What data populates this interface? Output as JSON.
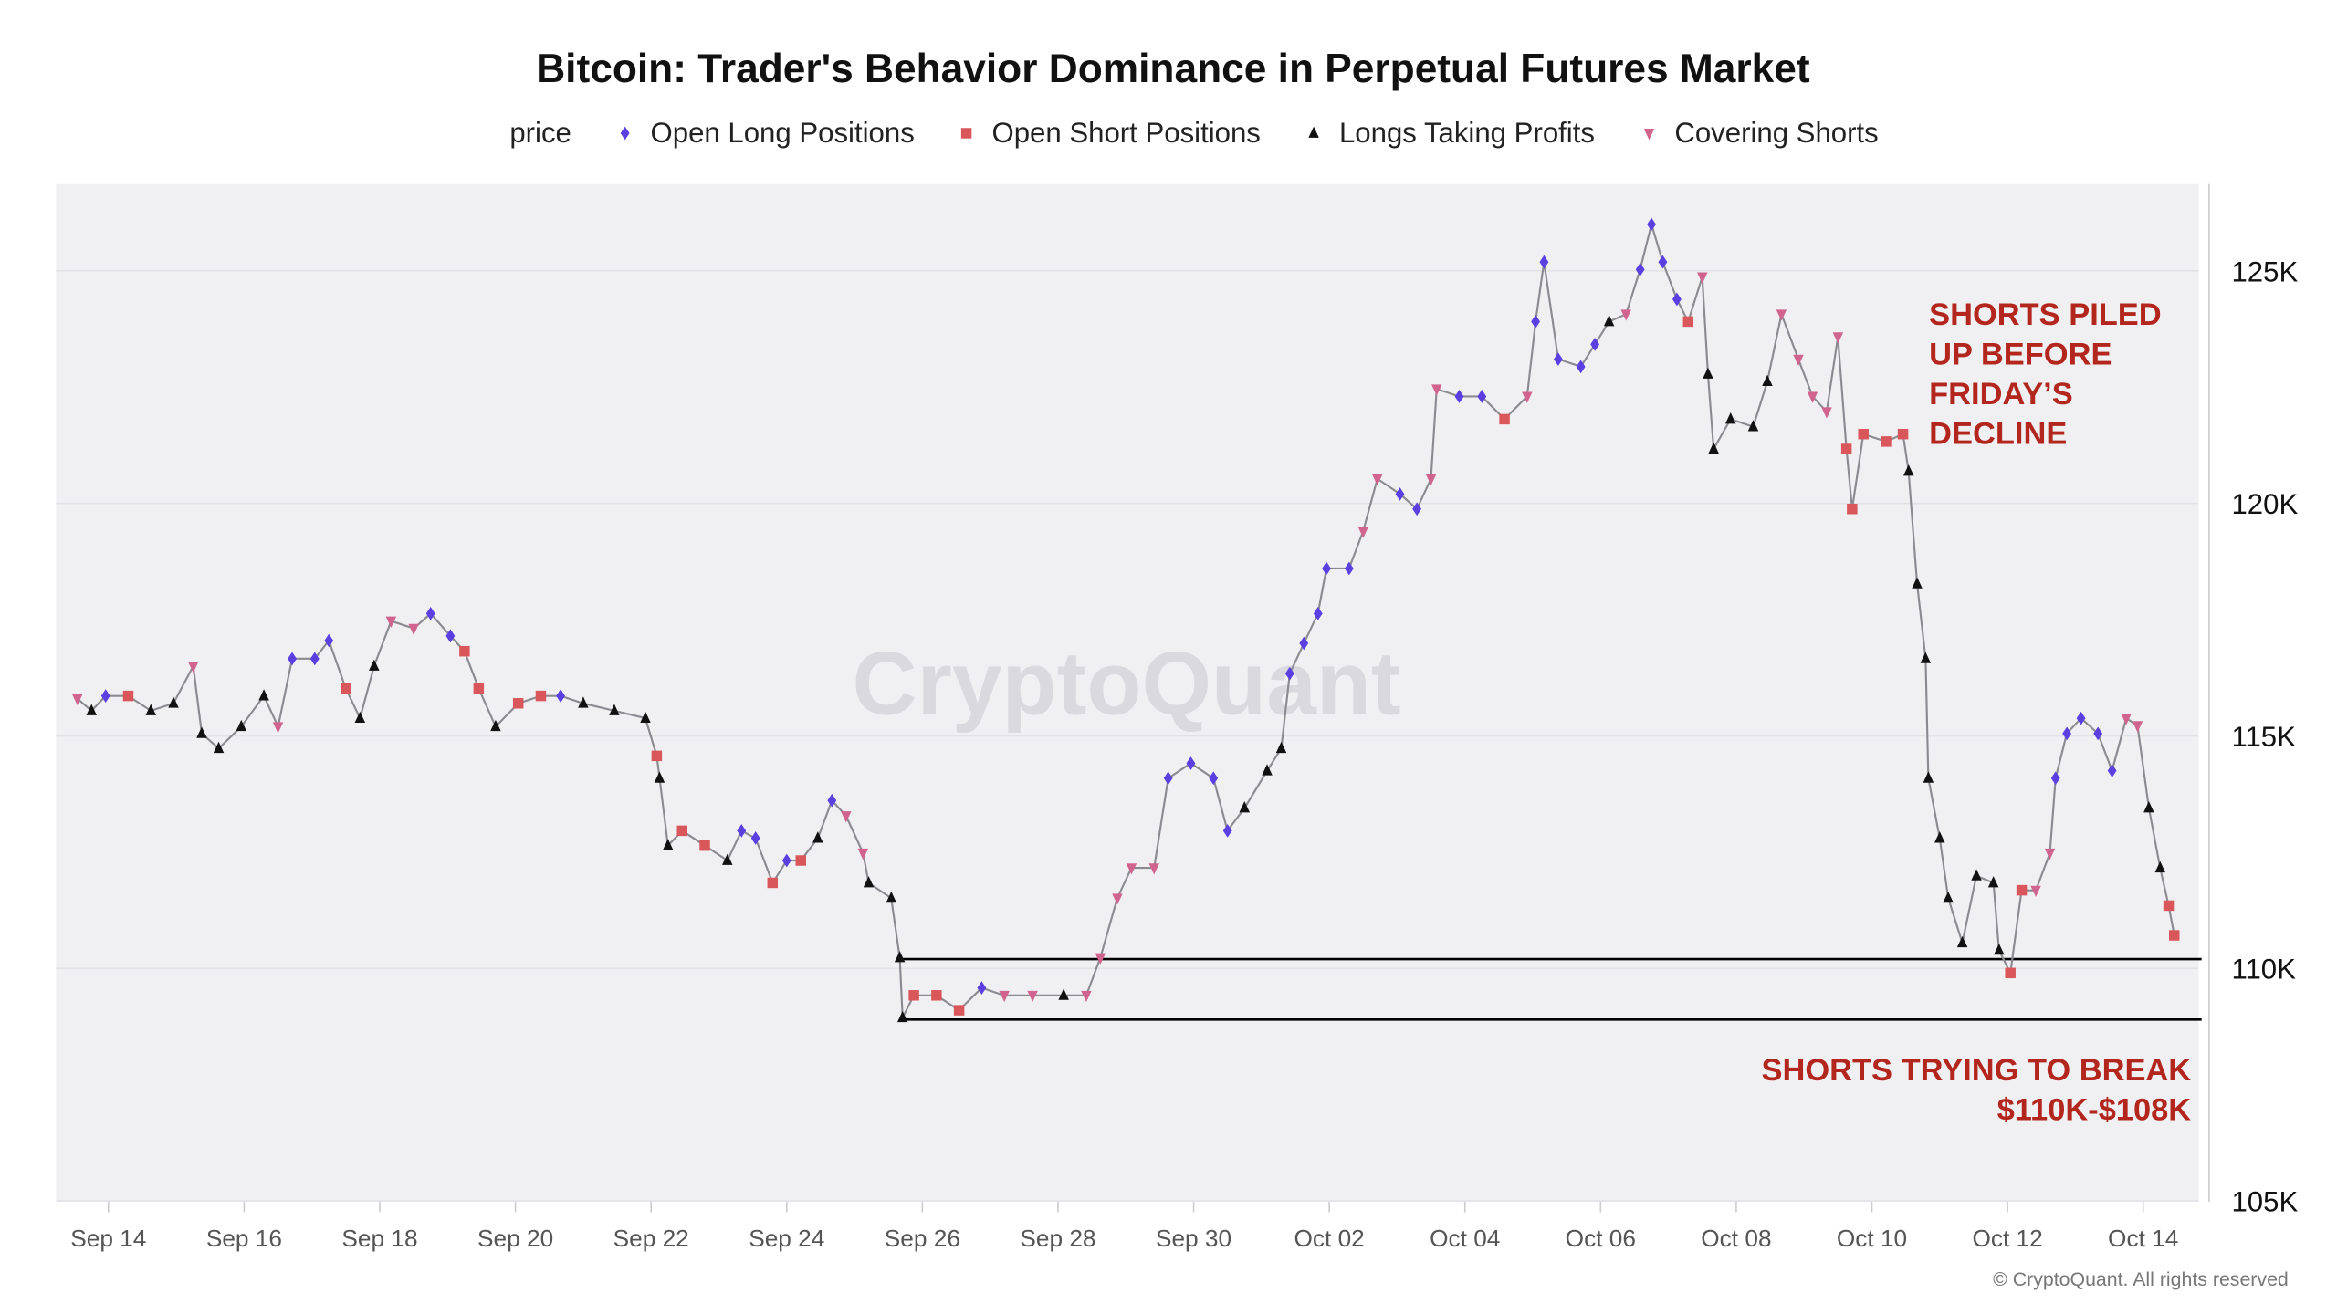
{
  "chart_data": {
    "type": "line",
    "title": "Bitcoin: Trader's Behavior Dominance in Perpetual Futures Market",
    "legend": [
      {
        "key": "price",
        "label": "price",
        "symbol": "line",
        "color": "#9a9aa0"
      },
      {
        "key": "L",
        "label": "Open Long Positions",
        "symbol": "diamond",
        "color": "#5b3fe0"
      },
      {
        "key": "S",
        "label": "Open Short Positions",
        "symbol": "square",
        "color": "#d9575a"
      },
      {
        "key": "P",
        "label": "Longs Taking Profits",
        "symbol": "triangle-up",
        "color": "#111111"
      },
      {
        "key": "C",
        "label": "Covering Shorts",
        "symbol": "triangle-down",
        "color": "#d0648f"
      }
    ],
    "legend_position": "top",
    "x_ticks": [
      "Sep 14",
      "Sep 16",
      "Sep 18",
      "Sep 20",
      "Sep 22",
      "Sep 24",
      "Sep 26",
      "Sep 28",
      "Sep 30",
      "Oct 02",
      "Oct 04",
      "Oct 06",
      "Oct 08",
      "Oct 10",
      "Oct 12",
      "Oct 14"
    ],
    "y_ticks": [
      "125K",
      "120K",
      "115K",
      "110K",
      "105K"
    ],
    "y_tick_values": [
      125,
      120,
      115,
      110,
      105
    ],
    "ylim": [
      105,
      127.8
    ],
    "y_unit": "K USD",
    "grid": "horizontal",
    "series_format": [
      "date hour",
      "price (K)",
      "behavior"
    ],
    "series": [
      [
        "09-13 13",
        115.8,
        "C"
      ],
      [
        "09-13 18",
        115.54,
        "P"
      ],
      [
        "09-13 23",
        115.86,
        "L"
      ],
      [
        "09-14 07",
        115.86,
        "S"
      ],
      [
        "09-14 15",
        115.54,
        "P"
      ],
      [
        "09-14 23",
        115.7,
        "P"
      ],
      [
        "09-15 06",
        116.5,
        "C"
      ],
      [
        "09-15 09",
        115.05,
        "P"
      ],
      [
        "09-15 15",
        114.73,
        "P"
      ],
      [
        "09-15 23",
        115.2,
        "P"
      ],
      [
        "09-16 07",
        115.86,
        "P"
      ],
      [
        "09-16 12",
        115.2,
        "C"
      ],
      [
        "09-16 17",
        116.66,
        "L"
      ],
      [
        "09-17 01",
        116.66,
        "L"
      ],
      [
        "09-17 06",
        117.05,
        "L"
      ],
      [
        "09-17 12",
        116.02,
        "S"
      ],
      [
        "09-17 17",
        115.38,
        "P"
      ],
      [
        "09-17 22",
        116.5,
        "P"
      ],
      [
        "09-18 04",
        117.47,
        "C"
      ],
      [
        "09-18 12",
        117.31,
        "C"
      ],
      [
        "09-18 18",
        117.63,
        "L"
      ],
      [
        "09-19 01",
        117.15,
        "L"
      ],
      [
        "09-19 06",
        116.82,
        "S"
      ],
      [
        "09-19 11",
        116.02,
        "S"
      ],
      [
        "09-19 17",
        115.2,
        "P"
      ],
      [
        "09-20 01",
        115.7,
        "S"
      ],
      [
        "09-20 09",
        115.86,
        "S"
      ],
      [
        "09-20 16",
        115.86,
        "L"
      ],
      [
        "09-21 00",
        115.7,
        "P"
      ],
      [
        "09-21 11",
        115.54,
        "P"
      ],
      [
        "09-21 22",
        115.38,
        "P"
      ],
      [
        "09-22 02",
        114.57,
        "S"
      ],
      [
        "09-22 03",
        114.09,
        "P"
      ],
      [
        "09-22 06",
        112.64,
        "P"
      ],
      [
        "09-22 11",
        112.96,
        "S"
      ],
      [
        "09-22 19",
        112.64,
        "S"
      ],
      [
        "09-23 03",
        112.32,
        "P"
      ],
      [
        "09-23 08",
        112.96,
        "L"
      ],
      [
        "09-23 13",
        112.8,
        "L"
      ],
      [
        "09-23 19",
        111.84,
        "S"
      ],
      [
        "09-24 00",
        112.32,
        "L"
      ],
      [
        "09-24 05",
        112.32,
        "S"
      ],
      [
        "09-24 11",
        112.8,
        "P"
      ],
      [
        "09-24 16",
        113.61,
        "L"
      ],
      [
        "09-24 21",
        113.28,
        "C"
      ],
      [
        "09-25 03",
        112.48,
        "C"
      ],
      [
        "09-25 05",
        111.84,
        "P"
      ],
      [
        "09-25 13",
        111.51,
        "P"
      ],
      [
        "09-25 16",
        110.23,
        "P"
      ],
      [
        "09-25 17",
        108.94,
        "P"
      ],
      [
        "09-25 21",
        109.42,
        "S"
      ],
      [
        "09-26 05",
        109.42,
        "S"
      ],
      [
        "09-26 13",
        109.1,
        "S"
      ],
      [
        "09-26 21",
        109.58,
        "L"
      ],
      [
        "09-27 05",
        109.42,
        "C"
      ],
      [
        "09-27 15",
        109.42,
        "C"
      ],
      [
        "09-28 02",
        109.42,
        "P"
      ],
      [
        "09-28 10",
        109.42,
        "C"
      ],
      [
        "09-28 15",
        110.23,
        "C"
      ],
      [
        "09-28 21",
        111.51,
        "C"
      ],
      [
        "09-29 02",
        112.16,
        "C"
      ],
      [
        "09-29 10",
        112.16,
        "C"
      ],
      [
        "09-29 15",
        114.09,
        "L"
      ],
      [
        "09-29 23",
        114.41,
        "L"
      ],
      [
        "09-30 07",
        114.09,
        "L"
      ],
      [
        "09-30 12",
        112.96,
        "L"
      ],
      [
        "09-30 18",
        113.45,
        "P"
      ],
      [
        "10-01 02",
        114.25,
        "P"
      ],
      [
        "10-01 07",
        114.73,
        "P"
      ],
      [
        "10-01 10",
        116.34,
        "L"
      ],
      [
        "10-01 15",
        116.99,
        "L"
      ],
      [
        "10-01 20",
        117.63,
        "L"
      ],
      [
        "10-01 23",
        118.6,
        "L"
      ],
      [
        "10-02 07",
        118.6,
        "L"
      ],
      [
        "10-02 12",
        119.4,
        "C"
      ],
      [
        "10-02 17",
        120.53,
        "C"
      ],
      [
        "10-03 01",
        120.2,
        "L"
      ],
      [
        "10-03 07",
        119.88,
        "L"
      ],
      [
        "10-03 12",
        120.53,
        "C"
      ],
      [
        "10-03 14",
        122.46,
        "C"
      ],
      [
        "10-03 22",
        122.3,
        "L"
      ],
      [
        "10-04 06",
        122.3,
        "L"
      ],
      [
        "10-04 14",
        121.81,
        "S"
      ],
      [
        "10-04 22",
        122.3,
        "C"
      ],
      [
        "10-05 01",
        123.91,
        "L"
      ],
      [
        "10-05 04",
        125.19,
        "L"
      ],
      [
        "10-05 09",
        123.1,
        "L"
      ],
      [
        "10-05 17",
        122.94,
        "L"
      ],
      [
        "10-05 22",
        123.42,
        "L"
      ],
      [
        "10-06 03",
        123.91,
        "P"
      ],
      [
        "10-06 09",
        124.07,
        "C"
      ],
      [
        "10-06 14",
        125.03,
        "L"
      ],
      [
        "10-06 18",
        126.0,
        "L"
      ],
      [
        "10-06 22",
        125.19,
        "L"
      ],
      [
        "10-07 03",
        124.39,
        "L"
      ],
      [
        "10-07 07",
        123.91,
        "S"
      ],
      [
        "10-07 12",
        124.87,
        "C"
      ],
      [
        "10-07 14",
        122.78,
        "P"
      ],
      [
        "10-07 16",
        121.17,
        "P"
      ],
      [
        "10-07 22",
        121.81,
        "P"
      ],
      [
        "10-08 06",
        121.65,
        "P"
      ],
      [
        "10-08 11",
        122.62,
        "P"
      ],
      [
        "10-08 16",
        124.07,
        "C"
      ],
      [
        "10-08 22",
        123.1,
        "C"
      ],
      [
        "10-09 03",
        122.3,
        "C"
      ],
      [
        "10-09 08",
        121.97,
        "C"
      ],
      [
        "10-09 12",
        123.58,
        "C"
      ],
      [
        "10-09 15",
        121.17,
        "S"
      ],
      [
        "10-09 17",
        119.88,
        "S"
      ],
      [
        "10-09 21",
        121.49,
        "S"
      ],
      [
        "10-10 05",
        121.33,
        "S"
      ],
      [
        "10-10 11",
        121.49,
        "S"
      ],
      [
        "10-10 13",
        120.69,
        "P"
      ],
      [
        "10-10 16",
        118.27,
        "P"
      ],
      [
        "10-10 19",
        116.66,
        "P"
      ],
      [
        "10-10 20",
        114.09,
        "P"
      ],
      [
        "10-11 00",
        112.8,
        "P"
      ],
      [
        "10-11 03",
        111.51,
        "P"
      ],
      [
        "10-11 08",
        110.55,
        "P"
      ],
      [
        "10-11 13",
        111.99,
        "P"
      ],
      [
        "10-11 19",
        111.84,
        "P"
      ],
      [
        "10-11 21",
        110.39,
        "P"
      ],
      [
        "10-12 01",
        109.9,
        "S"
      ],
      [
        "10-12 05",
        111.68,
        "S"
      ],
      [
        "10-12 10",
        111.68,
        "C"
      ],
      [
        "10-12 15",
        112.48,
        "C"
      ],
      [
        "10-12 17",
        114.09,
        "L"
      ],
      [
        "10-12 21",
        115.05,
        "L"
      ],
      [
        "10-13 02",
        115.38,
        "L"
      ],
      [
        "10-13 08",
        115.05,
        "L"
      ],
      [
        "10-13 13",
        114.25,
        "L"
      ],
      [
        "10-13 18",
        115.38,
        "C"
      ],
      [
        "10-13 22",
        115.22,
        "C"
      ],
      [
        "10-14 02",
        113.45,
        "P"
      ],
      [
        "10-14 06",
        112.16,
        "P"
      ],
      [
        "10-14 09",
        111.35,
        "S"
      ],
      [
        "10-14 11",
        110.71,
        "S"
      ]
    ],
    "reference_lines": [
      {
        "value": 110.2,
        "from": "09-25 16"
      },
      {
        "value": 108.9,
        "from": "09-25 16"
      }
    ],
    "annotations": [
      {
        "lines": [
          "SHORTS PILED",
          "UP BEFORE",
          "FRIDAY’S",
          "DECLINE"
        ],
        "align": "left"
      },
      {
        "lines": [
          "SHORTS TRYING TO BREAK",
          "$110K-$108K"
        ],
        "align": "right"
      }
    ],
    "watermark": "CryptoQuant",
    "copyright": "© CryptoQuant. All rights reserved"
  }
}
